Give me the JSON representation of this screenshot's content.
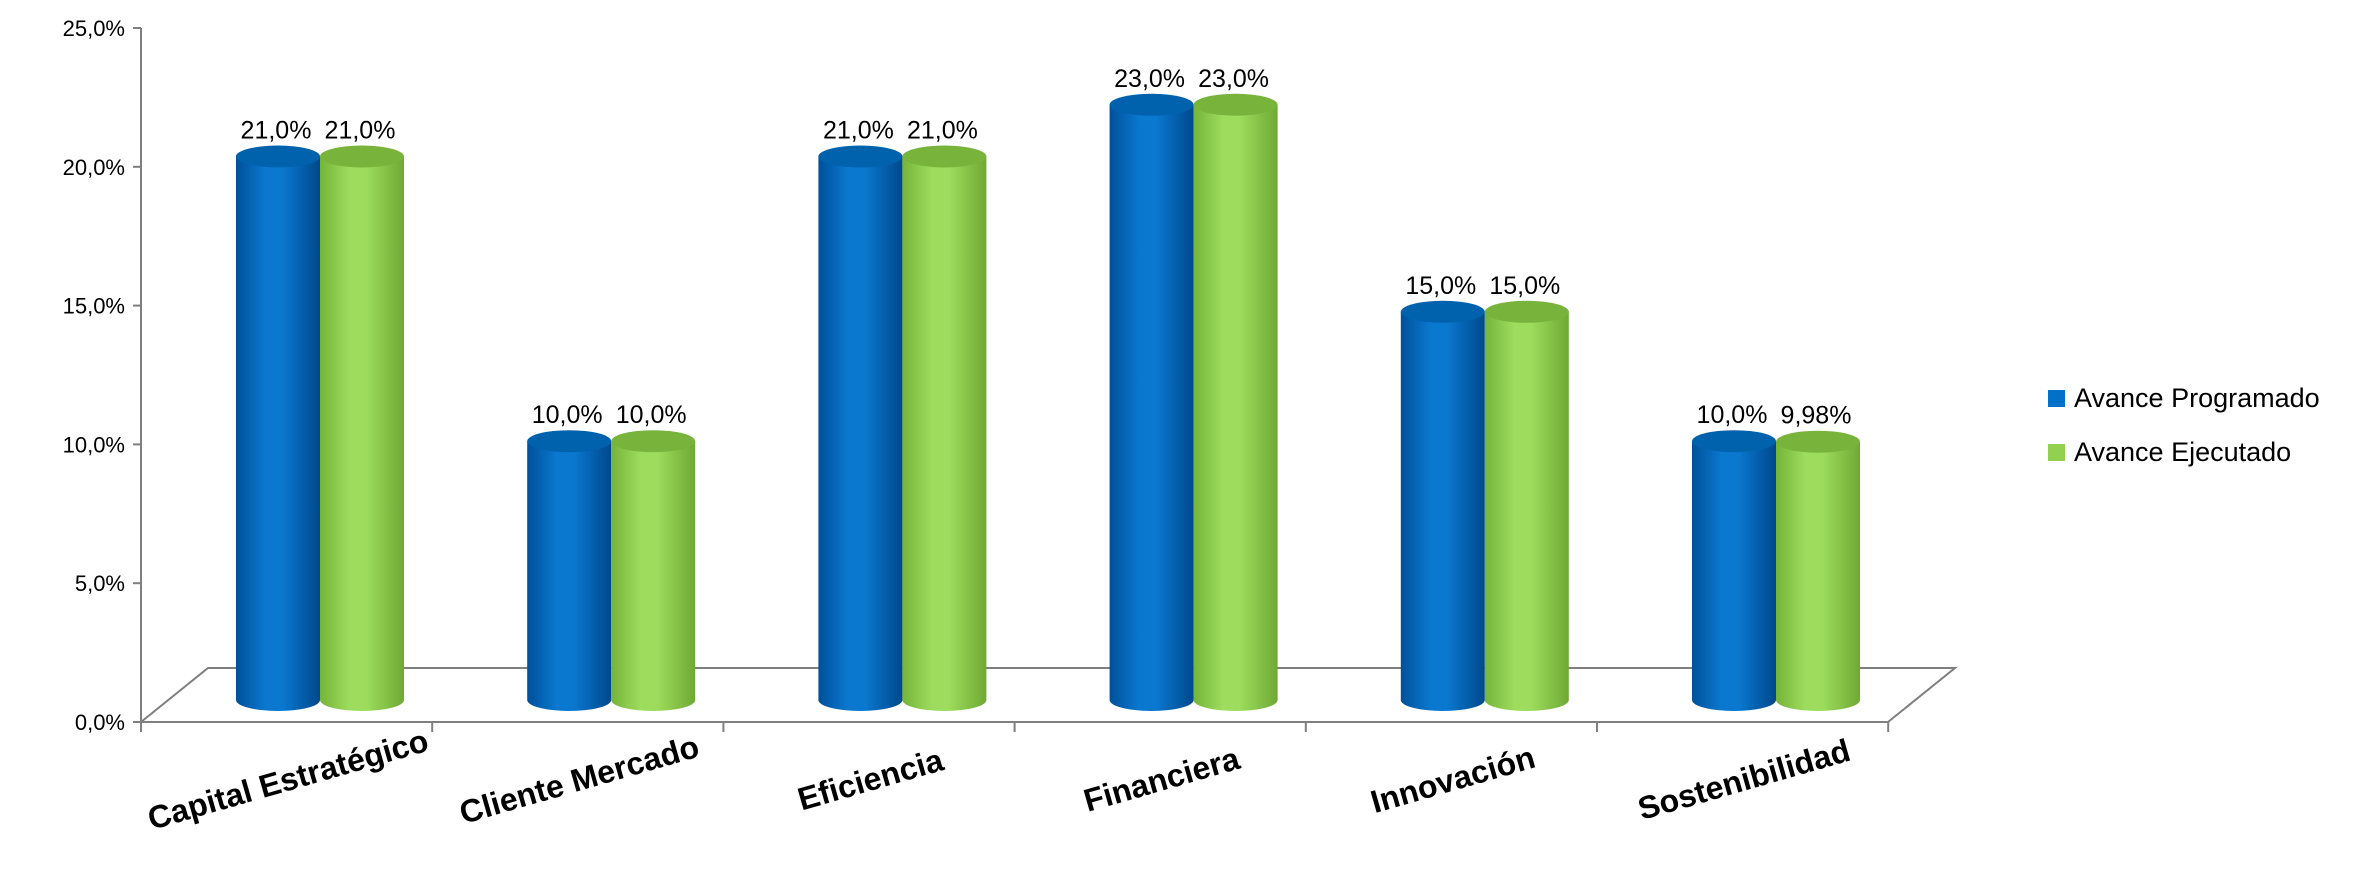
{
  "chart_data": {
    "type": "bar",
    "categories": [
      "Capital Estratégico",
      "Cliente Mercado",
      "Eficiencia",
      "Financiera",
      "Innovación",
      "Sostenibilidad"
    ],
    "series": [
      {
        "name": "Avance Programado",
        "color": "#0070C8",
        "values": [
          21.0,
          10.0,
          21.0,
          23.0,
          15.0,
          10.0
        ],
        "labels": [
          "21,0%",
          "10,0%",
          "21,0%",
          "23,0%",
          "15,0%",
          "10,0%"
        ]
      },
      {
        "name": "Avance Ejecutado",
        "color": "#92D050",
        "values": [
          21.0,
          10.0,
          21.0,
          23.0,
          15.0,
          9.98
        ],
        "labels": [
          "21,0%",
          "10,0%",
          "21,0%",
          "23,0%",
          "15,0%",
          "9,98%"
        ]
      }
    ],
    "yticks": [
      {
        "value": 0,
        "label": "0,0%"
      },
      {
        "value": 5,
        "label": "5,0%"
      },
      {
        "value": 10,
        "label": "10,0%"
      },
      {
        "value": 15,
        "label": "15,0%"
      },
      {
        "value": 20,
        "label": "20,0%"
      },
      {
        "value": 25,
        "label": "25,0%"
      }
    ],
    "ylim": [
      0,
      25
    ],
    "title": "",
    "xlabel": "",
    "ylabel": "",
    "grid": false,
    "legend_position": "right",
    "style": "3d-cylinder"
  }
}
